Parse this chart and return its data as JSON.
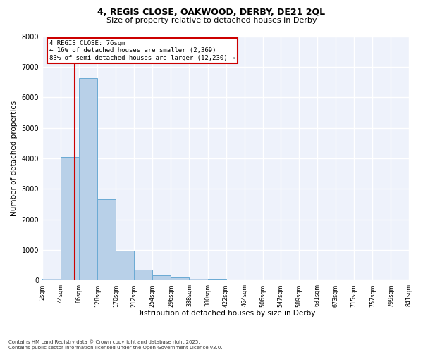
{
  "title_line1": "4, REGIS CLOSE, OAKWOOD, DERBY, DE21 2QL",
  "title_line2": "Size of property relative to detached houses in Derby",
  "xlabel": "Distribution of detached houses by size in Derby",
  "ylabel": "Number of detached properties",
  "bin_edges": [
    2,
    44,
    86,
    128,
    170,
    212,
    254,
    296,
    338,
    380,
    422,
    464,
    506,
    547,
    589,
    631,
    673,
    715,
    757,
    799,
    841
  ],
  "bar_heights": [
    50,
    4050,
    6620,
    2650,
    975,
    355,
    175,
    100,
    50,
    20,
    10,
    5,
    5,
    3,
    3,
    2,
    2,
    1,
    1,
    1
  ],
  "bar_color": "#b8d0e8",
  "bar_edgecolor": "#6aaad4",
  "property_size": 76,
  "red_line_color": "#cc0000",
  "annotation_text": "4 REGIS CLOSE: 76sqm\n← 16% of detached houses are smaller (2,369)\n83% of semi-detached houses are larger (12,230) →",
  "annotation_box_color": "#cc0000",
  "ylim": [
    0,
    8000
  ],
  "yticks": [
    0,
    1000,
    2000,
    3000,
    4000,
    5000,
    6000,
    7000,
    8000
  ],
  "background_color": "#eef2fb",
  "grid_color": "#ffffff",
  "footer_line1": "Contains HM Land Registry data © Crown copyright and database right 2025.",
  "footer_line2": "Contains public sector information licensed under the Open Government Licence v3.0.",
  "tick_labels": [
    "2sqm",
    "44sqm",
    "86sqm",
    "128sqm",
    "170sqm",
    "212sqm",
    "254sqm",
    "296sqm",
    "338sqm",
    "380sqm",
    "422sqm",
    "464sqm",
    "506sqm",
    "547sqm",
    "589sqm",
    "631sqm",
    "673sqm",
    "715sqm",
    "757sqm",
    "799sqm",
    "841sqm"
  ]
}
